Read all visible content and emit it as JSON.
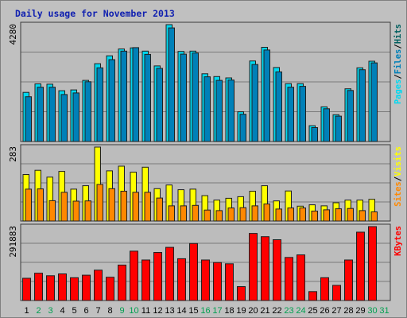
{
  "window": {
    "title": "Daily usage for November 2013"
  },
  "chart_data": {
    "type": "bar",
    "title": "Daily usage for November 2013",
    "x": [
      "1",
      "2",
      "3",
      "4",
      "5",
      "6",
      "7",
      "8",
      "9",
      "10",
      "11",
      "12",
      "13",
      "14",
      "15",
      "16",
      "17",
      "18",
      "19",
      "20",
      "21",
      "22",
      "23",
      "24",
      "25",
      "26",
      "27",
      "28",
      "29",
      "30",
      "31"
    ],
    "weekend_days": [
      "2",
      "3",
      "9",
      "10",
      "16",
      "17",
      "23",
      "24",
      "30",
      "31"
    ],
    "colors": {
      "pages": "#00d8f0",
      "files": "#0080b8",
      "hits": "#006060",
      "visits": "#ffff00",
      "sites": "#ff8800",
      "kbytes": "#ff0000",
      "weekday_label": "#000000",
      "weekend_label": "#00a050"
    },
    "charts": [
      {
        "name": "top",
        "ymax_label": "4280",
        "ylim": [
          0,
          4280
        ],
        "series": [
          {
            "name": "Pages",
            "values": [
              1800,
              2110,
              2100,
              1860,
              1890,
              2240,
              2850,
              3140,
              3390,
              3430,
              3310,
              2770,
              4280,
              3300,
              3310,
              2480,
              2380,
              2330,
              1090,
              2950,
              3450,
              2710,
              2120,
              2120,
              580,
              1270,
              980,
              1930,
              2700,
              2940,
              0
            ]
          },
          {
            "name": "Files",
            "values": [
              1640,
              1990,
              1990,
              1720,
              1780,
              2190,
              2700,
              3000,
              3310,
              3440,
              3190,
              2680,
              4160,
              3200,
              3240,
              2370,
              2240,
              2250,
              1000,
              2820,
              3350,
              2550,
              1990,
              2020,
              510,
              1200,
              930,
              1870,
              2630,
              2880,
              0
            ]
          }
        ]
      },
      {
        "name": "middle",
        "ymax_label": "283",
        "ylim": [
          0,
          283
        ],
        "series": [
          {
            "name": "Visits",
            "values": [
              178,
              194,
              168,
              190,
              122,
              135,
              283,
              192,
              210,
              187,
              206,
              124,
              138,
              120,
              122,
              97,
              80,
              87,
              93,
              114,
              135,
              77,
              115,
              57,
              62,
              58,
              70,
              80,
              80,
              83,
              0
            ]
          },
          {
            "name": "Sites",
            "values": [
              122,
              123,
              78,
              110,
              76,
              77,
              140,
              124,
              114,
              110,
              110,
              88,
              58,
              58,
              60,
              42,
              40,
              50,
              51,
              58,
              65,
              46,
              50,
              50,
              38,
              43,
              47,
              48,
              40,
              35,
              0
            ]
          }
        ]
      },
      {
        "name": "bottom",
        "ymax_label": "291883",
        "ylim": [
          0,
          291883
        ],
        "series": [
          {
            "name": "KBytes",
            "values": [
              88000,
              108000,
              98000,
              105000,
              90000,
              100000,
              120000,
              92000,
              140000,
              195000,
              160000,
              190000,
              210000,
              165000,
              225000,
              160000,
              150000,
              145000,
              55000,
              265000,
              252000,
              240000,
              170000,
              180000,
              35000,
              90000,
              60000,
              160000,
              270000,
              291883,
              0
            ]
          }
        ]
      }
    ],
    "right_labels": {
      "top": [
        {
          "text": "Pages",
          "color": "#00d8f0"
        },
        {
          "text": "/",
          "color": "#000000"
        },
        {
          "text": "Files",
          "color": "#0080b8"
        },
        {
          "text": "/",
          "color": "#000000"
        },
        {
          "text": "Hits",
          "color": "#006060"
        }
      ],
      "middle": [
        {
          "text": "Sites",
          "color": "#ff8800"
        },
        {
          "text": "/",
          "color": "#000000"
        },
        {
          "text": "Visits",
          "color": "#ffff00"
        }
      ],
      "bottom": [
        {
          "text": "KBytes",
          "color": "#ff0000"
        }
      ]
    },
    "grid": true
  }
}
